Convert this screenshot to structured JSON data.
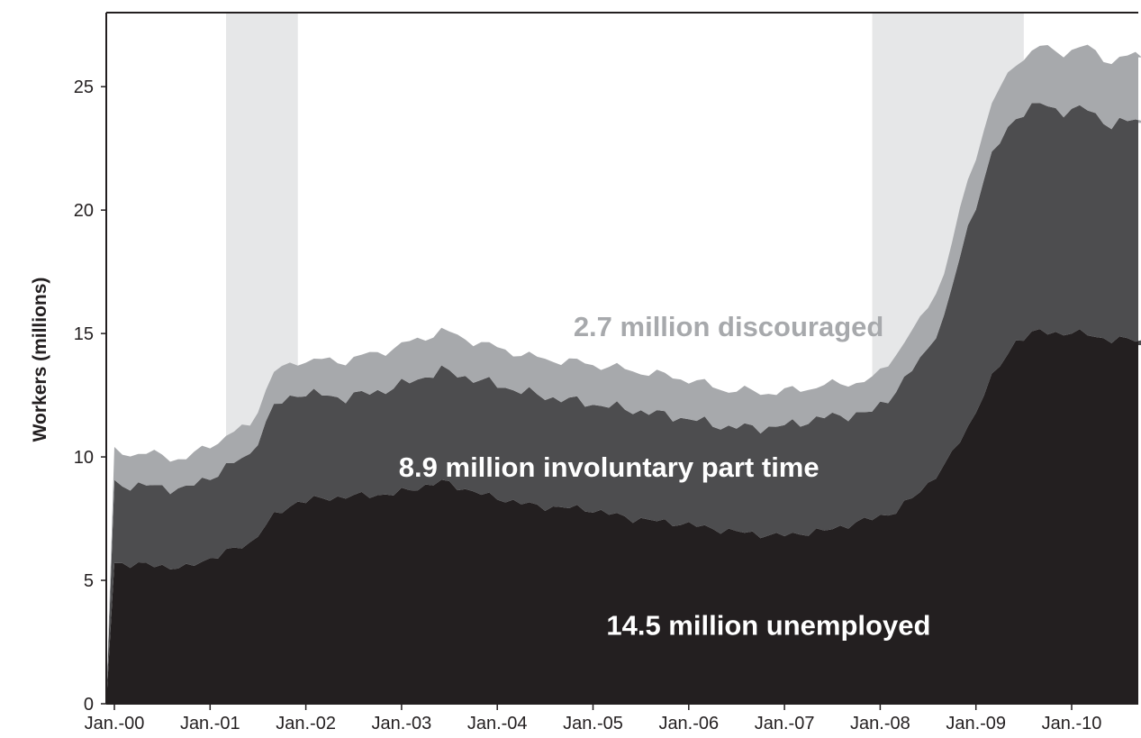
{
  "chart_data": {
    "type": "area",
    "stacked": true,
    "title": "",
    "xlabel": "",
    "ylabel": "Workers (millions)",
    "ylim": [
      0,
      28
    ],
    "yticks": [
      0,
      5,
      10,
      15,
      20,
      25
    ],
    "x_tick_labels": [
      "Jan.-00",
      "Jan.-01",
      "Jan.-02",
      "Jan.-03",
      "Jan.-04",
      "Jan.-05",
      "Jan.-06",
      "Jan.-07",
      "Jan.-08",
      "Jan.-09",
      "Jan.-10"
    ],
    "x_range_months": [
      "2000-01",
      "2010-12"
    ],
    "grid": false,
    "legend": "none",
    "recessions": [
      {
        "start": "2001-03",
        "end": "2001-11"
      },
      {
        "start": "2007-12",
        "end": "2009-06"
      }
    ],
    "keyframes": [
      [
        "2000-01",
        5.7,
        3.2,
        1.3
      ],
      [
        "2000-06",
        5.6,
        3.2,
        1.3
      ],
      [
        "2000-10",
        5.5,
        3.2,
        1.2
      ],
      [
        "2001-01",
        5.9,
        3.3,
        1.3
      ],
      [
        "2001-06",
        6.5,
        3.6,
        1.2
      ],
      [
        "2001-09",
        7.6,
        4.4,
        1.4
      ],
      [
        "2001-12",
        8.2,
        4.4,
        1.3
      ],
      [
        "2002-06",
        8.4,
        4.0,
        1.5
      ],
      [
        "2002-12",
        8.5,
        4.3,
        1.6
      ],
      [
        "2003-06",
        9.0,
        4.5,
        1.6
      ],
      [
        "2003-12",
        8.4,
        4.6,
        1.5
      ],
      [
        "2004-06",
        8.0,
        4.5,
        1.5
      ],
      [
        "2004-12",
        7.9,
        4.3,
        1.6
      ],
      [
        "2005-06",
        7.5,
        4.4,
        1.6
      ],
      [
        "2005-12",
        7.3,
        4.3,
        1.6
      ],
      [
        "2006-06",
        7.0,
        4.2,
        1.5
      ],
      [
        "2006-12",
        6.8,
        4.4,
        1.4
      ],
      [
        "2007-06",
        7.0,
        4.6,
        1.3
      ],
      [
        "2007-12",
        7.5,
        4.3,
        1.3
      ],
      [
        "2008-03",
        7.8,
        4.9,
        1.5
      ],
      [
        "2008-06",
        8.6,
        5.3,
        1.6
      ],
      [
        "2008-09",
        9.6,
        6.0,
        1.8
      ],
      [
        "2008-12",
        11.2,
        8.1,
        1.9
      ],
      [
        "2009-03",
        13.2,
        9.0,
        2.1
      ],
      [
        "2009-06",
        14.7,
        9.1,
        2.2
      ],
      [
        "2009-09",
        15.1,
        9.2,
        2.3
      ],
      [
        "2009-12",
        15.0,
        9.0,
        2.4
      ],
      [
        "2010-03",
        15.0,
        9.1,
        2.5
      ],
      [
        "2010-06",
        14.7,
        8.7,
        2.6
      ],
      [
        "2010-09",
        14.8,
        8.9,
        2.6
      ],
      [
        "2010-12",
        14.5,
        8.9,
        2.7
      ]
    ],
    "series": [
      {
        "color": "#231f20"
      },
      {
        "color": "#4d4d4f"
      },
      {
        "color": "#a7a9ac"
      }
    ],
    "recession_color": "#e6e7e8",
    "annotations": [
      {
        "text": "14.5 million unemployed",
        "x": "2006-11",
        "y": 3.2,
        "color": "#ffffff"
      },
      {
        "text": "8.9 million involuntary part time",
        "x": "2005-03",
        "y": 9.6,
        "color": "#ffffff"
      },
      {
        "text": "2.7 million discouraged",
        "x": "2006-06",
        "y": 15.3,
        "color": "#a7a9ac"
      }
    ]
  }
}
